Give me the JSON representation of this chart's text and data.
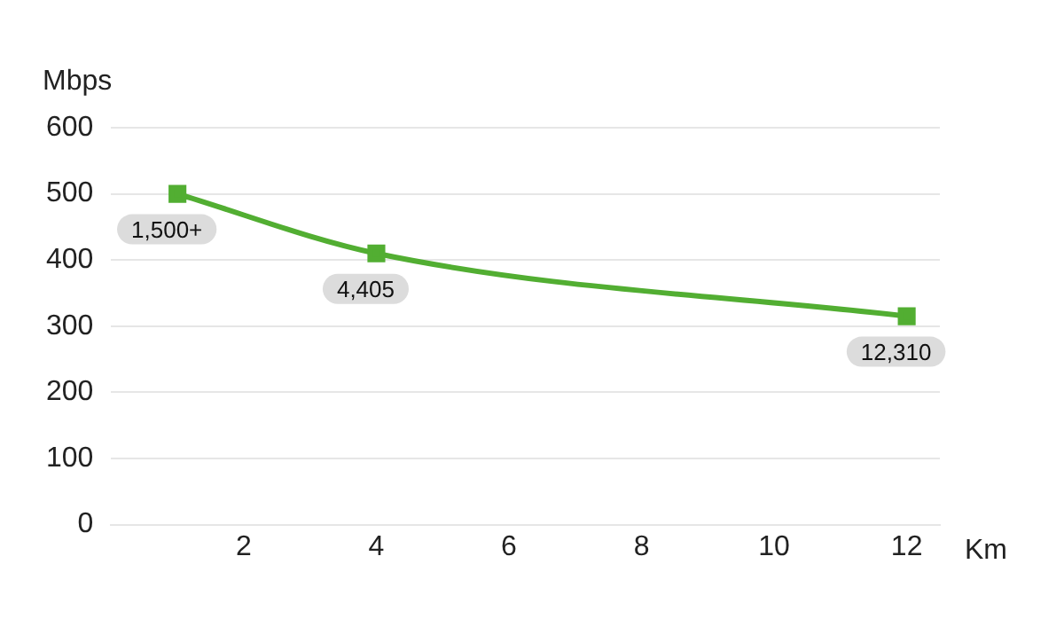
{
  "chart_data": {
    "type": "line",
    "xlabel": "Km",
    "ylabel": "Mbps",
    "x": [
      1,
      4,
      12
    ],
    "series": [
      {
        "color": "#52ae32",
        "values": [
          500,
          410,
          315
        ]
      }
    ],
    "annotations": [
      {
        "text": "1,500+",
        "x": 1,
        "y": 500
      },
      {
        "text": "4,405",
        "x": 4,
        "y": 410
      },
      {
        "text": "12,310",
        "x": 12,
        "y": 315
      }
    ],
    "xlim": [
      0,
      12.5
    ],
    "xticks": [
      2,
      4,
      6,
      8,
      10,
      12
    ],
    "ylim": [
      0,
      600
    ],
    "yticks": [
      0,
      100,
      200,
      300,
      400,
      500,
      600
    ],
    "grid": "y",
    "legend": false,
    "marker": "square",
    "line_style": "solid"
  }
}
